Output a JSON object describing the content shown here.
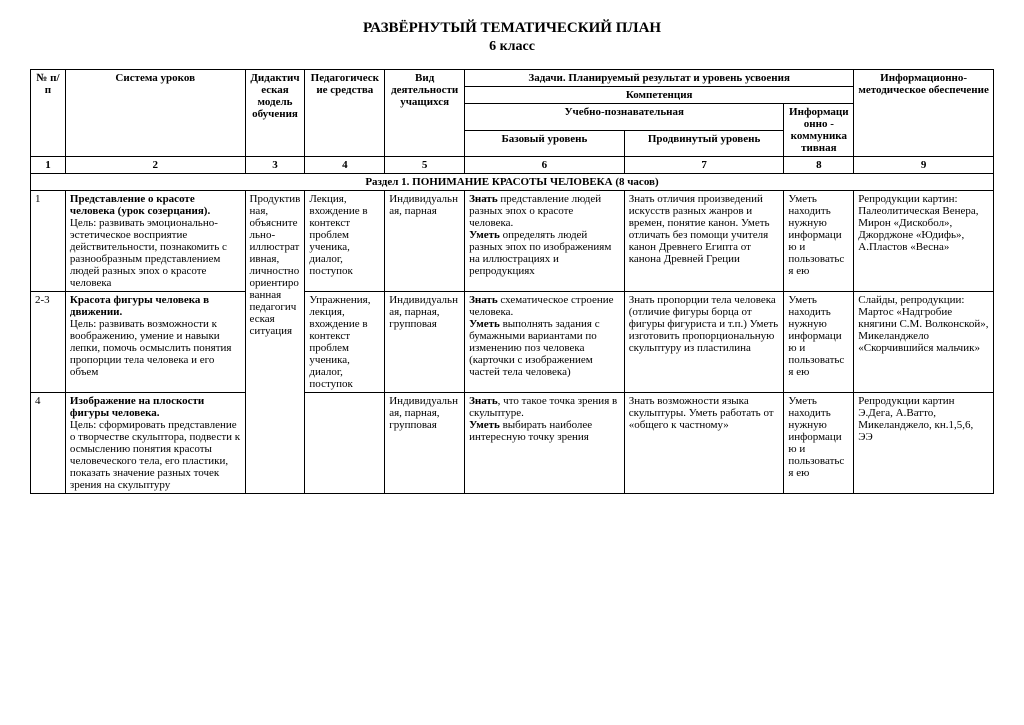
{
  "title": "РАЗВЁРНУТЫЙ ТЕМАТИЧЕСКИЙ ПЛАН",
  "subtitle": "6 класс",
  "headers": {
    "num": "№ п/п",
    "system": "Система уроков",
    "didactic": "Дидактическая модель обучения",
    "pedagogic": "Педагогические средства",
    "activity": "Вид деятельности учащихся",
    "tasks": "Задачи. Планируемый результат и уровень усвоения",
    "competence": "Компетенция",
    "cognitive": "Учебно-познавательная",
    "base": "Базовый уровень",
    "advanced": "Продвинутый уровень",
    "info_comm": "Информационно - коммуникативная",
    "info_support": "Информационно-методическое обеспечение"
  },
  "colnums": [
    "1",
    "2",
    "3",
    "4",
    "5",
    "6",
    "7",
    "8",
    "9"
  ],
  "section1": "Раздел 1. ПОНИМАНИЕ КРАСОТЫ ЧЕЛОВЕКА (8 часов)",
  "rows": {
    "r1": {
      "num": "1",
      "system_title": "Представление о красоте человека (урок созерцания).",
      "system_body": "Цель: развивать эмоционально- эстетическое восприятие действительности, познакомить с разнообразным представлением людей разных эпох о красоте человека",
      "didactic": "Продуктивная, объяснительно-иллюстративная, личностно ориентированная педагогическая ситуация",
      "pedagogic": "Лекция, вхождение в контекст проблем ученика, диалог, поступок",
      "activity": "Индивидуальная, парная",
      "base_lead": "Знать",
      "base_1": " представление людей разных эпох о красоте человека.",
      "base_lead2": "Уметь",
      "base_2": " определять людей разных эпох по изображениям на иллюстрациях и репродукциях",
      "advanced": "Знать отличия произведений искусств разных жанров и времен, понятие канон. Уметь отличать без помощи учителя канон Древнего Египта от канона Древней Греции",
      "info_comm": "Уметь находить нужную информацию и пользоваться ею",
      "info_support": "Репродукции картин: Палеолитическая Венера, Мирон «Дискобол», Джорджоне «Юдифь», А.Пластов «Весна»"
    },
    "r2": {
      "num": "2-3",
      "system_title": "Красота фигуры человека в движении.",
      "system_body": "Цель: развивать возможности к воображению, умение и навыки лепки, помочь осмыслить понятия пропорции тела человека и его объем",
      "pedagogic": "Упражнения, лекция, вхождение в контекст проблем ученика, диалог, поступок",
      "activity": "Индивидуальная, парная, групповая",
      "base_lead": "Знать",
      "base_1": " схематическое строение человека.",
      "base_lead2": "Уметь",
      "base_2": " выполнять задания с бумажными вариантами по изменению поз человека (карточки с изображением частей тела человека)",
      "advanced": "Знать пропорции тела человека (отличие фигуры борца от фигуры фигуриста и т.п.) Уметь изготовить пропорциональную скульптуру из пластилина",
      "info_comm": "Уметь находить нужную информацию и пользоваться ею",
      "info_support": "Слайды, репродукции: Мартос «Надгробие княгини С.М. Волконской», Микеланджело «Скорчившийся мальчик»"
    },
    "r3": {
      "num": "4",
      "system_title": "Изображение на плоскости фигуры человека.",
      "system_body": "Цель: сформировать представление о творчестве скульптора, подвести к осмыслению понятия красоты человеческого тела, его пластики, показать значение разных точек зрения на скульптуру",
      "pedagogic": "",
      "activity": "Индивидуальная, парная, групповая",
      "base_lead": "Знать",
      "base_1": ", что такое точка зрения в скульптуре.",
      "base_lead2": "Уметь",
      "base_2": " выбирать наиболее интересную точку зрения",
      "advanced": "Знать возможности языка скульптуры. Уметь работать от «общего к частному»",
      "info_comm": "Уметь находить нужную информацию и пользоваться ею",
      "info_support": "Репродукции картин Э.Дега, А.Ватто, Микеланджело, кн.1,5,6, ЭЭ"
    }
  }
}
